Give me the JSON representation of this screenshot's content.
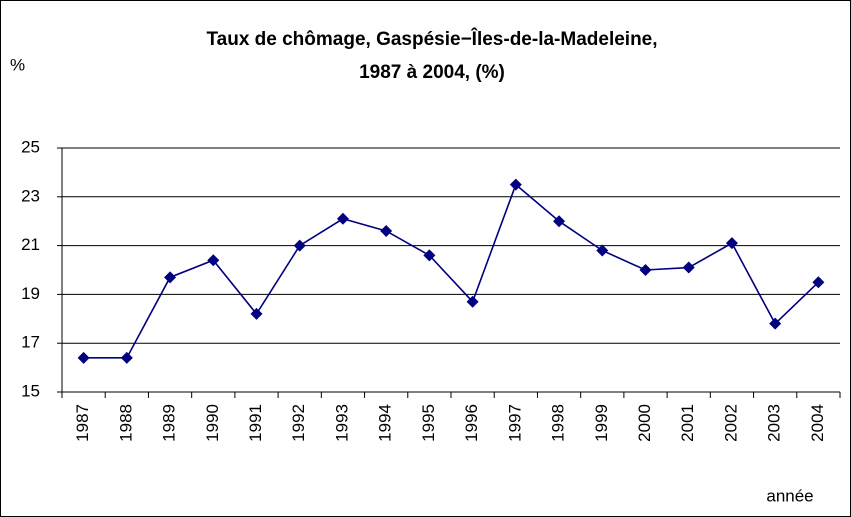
{
  "chart_data": {
    "type": "line",
    "title": [
      "Taux de chômage, Gaspésie−Îles-de-la-Madeleine,",
      "1987 à 2004, (%)"
    ],
    "y_label": "%",
    "x_label": "année",
    "categories": [
      "1987",
      "1988",
      "1989",
      "1990",
      "1991",
      "1992",
      "1993",
      "1994",
      "1995",
      "1996",
      "1997",
      "1998",
      "1999",
      "2000",
      "2001",
      "2002",
      "2003",
      "2004"
    ],
    "series": [
      {
        "name": "Taux de chômage",
        "color": "#000080",
        "values": [
          16.4,
          16.4,
          19.7,
          20.4,
          18.2,
          21.0,
          22.1,
          21.6,
          20.6,
          18.7,
          23.5,
          22.0,
          20.8,
          20.0,
          20.1,
          21.1,
          17.8,
          19.5
        ]
      }
    ],
    "ylim": [
      15,
      25
    ],
    "yticks": [
      15,
      17,
      19,
      21,
      23,
      25
    ],
    "grid": true
  }
}
